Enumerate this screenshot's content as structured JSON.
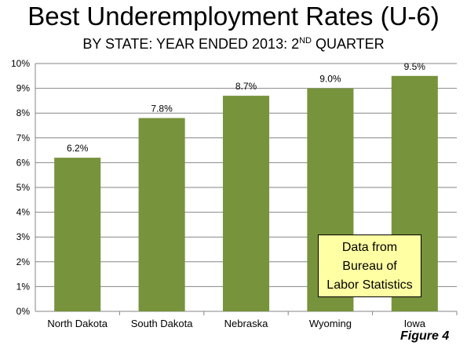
{
  "title": "Best Underemployment Rates (U-6)",
  "subtitle": {
    "text": "BY STATE: YEAR ENDED 2013: 2",
    "sup": "ND",
    "tail": " QUARTER"
  },
  "note": {
    "lines": [
      "Data from",
      "Bureau of",
      "Labor Statistics"
    ]
  },
  "figure_label": "Figure 4",
  "chart_data": {
    "type": "bar",
    "title": "Best Underemployment Rates (U-6)",
    "xlabel": "",
    "ylabel": "",
    "categories": [
      "North Dakota",
      "South Dakota",
      "Nebraska",
      "Wyoming",
      "Iowa"
    ],
    "values": [
      6.2,
      7.8,
      8.7,
      9.0,
      9.5
    ],
    "data_labels": [
      "6.2%",
      "7.8%",
      "8.7%",
      "9.0%",
      "9.5%"
    ],
    "ylim": [
      0,
      10
    ],
    "yticks": [
      "0%",
      "1%",
      "2%",
      "3%",
      "4%",
      "5%",
      "6%",
      "7%",
      "8%",
      "9%",
      "10%"
    ],
    "grid": true,
    "legend": false,
    "bar_color": "#77933c"
  }
}
